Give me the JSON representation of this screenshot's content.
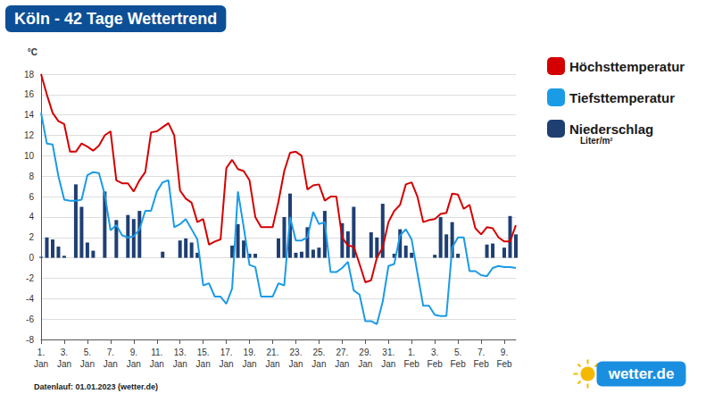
{
  "chart_data": {
    "type": "line",
    "title": "Köln - 42 Tage Wettertrend",
    "y_label": "°C",
    "unit_note": "Liter/m²",
    "footnote": "Datenlauf: 01.01.2023 (wetter.de)",
    "logo": "wetter.de",
    "categories": [
      "1. Jan",
      null,
      null,
      null,
      "3. Jan",
      null,
      null,
      null,
      "5. Jan",
      null,
      null,
      null,
      "7. Jan",
      null,
      null,
      null,
      "9. Jan",
      null,
      null,
      null,
      "11. Jan",
      null,
      null,
      null,
      "13. Jan",
      null,
      null,
      null,
      "15. Jan",
      null,
      null,
      null,
      "17. Jan",
      null,
      null,
      null,
      "19. Jan",
      null,
      null,
      null,
      "21. Jan",
      null,
      null,
      null,
      "23. Jan",
      null,
      null,
      null,
      "25. Jan",
      null,
      null,
      null,
      "27. Jan",
      null,
      null,
      null,
      "29. Jan",
      null,
      null,
      null,
      "31. Jan",
      null,
      null,
      null,
      "1. Feb",
      null,
      null,
      null,
      "3. Feb",
      null,
      null,
      null,
      "5. Feb",
      null,
      null,
      null,
      "7. Feb",
      null,
      null,
      null,
      "9. Feb",
      null,
      null
    ],
    "series": [
      {
        "name": "Höchsttemperatur",
        "type": "line",
        "color": "#d40000",
        "values": [
          18.0,
          16.0,
          14.2,
          13.4,
          13.1,
          10.4,
          10.4,
          11.2,
          10.9,
          10.5,
          11.0,
          12.0,
          12.4,
          7.6,
          7.3,
          7.3,
          6.5,
          7.6,
          8.4,
          12.3,
          12.4,
          12.8,
          13.2,
          12.0,
          6.6,
          5.8,
          5.4,
          3.5,
          3.8,
          1.3,
          1.6,
          1.8,
          8.8,
          9.6,
          8.7,
          8.5,
          7.6,
          4.0,
          3.0,
          3.0,
          3.0,
          5.5,
          8.5,
          10.3,
          10.4,
          10.0,
          6.7,
          7.1,
          7.2,
          5.6,
          6.0,
          6.0,
          2.0,
          1.2,
          1.1,
          -0.6,
          -2.4,
          -2.2,
          0.0,
          1.0,
          3.5,
          4.6,
          5.2,
          7.2,
          7.4,
          6.0,
          3.5,
          3.7,
          3.8,
          4.3,
          4.4,
          6.3,
          6.2,
          4.8,
          5.2,
          2.9,
          2.3,
          3.0,
          2.9,
          2.0,
          1.6,
          1.6,
          3.2
        ]
      },
      {
        "name": "Tiefsttemperatur",
        "type": "line",
        "color": "#1a9be6",
        "values": [
          14.2,
          11.2,
          11.1,
          8.0,
          5.7,
          5.6,
          5.6,
          5.7,
          8.1,
          8.4,
          8.3,
          6.2,
          2.7,
          3.2,
          2.2,
          2.0,
          2.1,
          2.8,
          4.6,
          4.6,
          6.5,
          7.4,
          7.6,
          3.0,
          3.3,
          3.8,
          2.8,
          1.8,
          -2.7,
          -2.5,
          -3.8,
          -3.8,
          -4.5,
          -3.0,
          6.5,
          3.0,
          -0.7,
          -0.9,
          -3.8,
          -3.8,
          -3.8,
          -2.5,
          -2.7,
          4.0,
          1.7,
          1.7,
          2.0,
          4.5,
          3.3,
          3.5,
          -1.4,
          -1.4,
          -1.0,
          -0.4,
          -3.2,
          -3.6,
          -6.2,
          -6.2,
          -6.5,
          -4.3,
          -0.8,
          -0.6,
          2.2,
          2.8,
          1.8,
          -1.5,
          -4.7,
          -4.7,
          -5.6,
          -5.7,
          -5.7,
          1.0,
          2.0,
          2.0,
          -1.3,
          -1.3,
          -1.7,
          -1.8,
          -1.0,
          -0.8,
          -0.9,
          -0.9,
          -1.0
        ]
      },
      {
        "name": "Niederschlag",
        "type": "bar",
        "color": "#1f3f73",
        "values": [
          0.1,
          2.0,
          1.8,
          1.1,
          0.2,
          0,
          7.2,
          5.0,
          1.5,
          0.7,
          0,
          6.5,
          0,
          3.7,
          0,
          4.2,
          3.8,
          4.6,
          0,
          0,
          0,
          0.6,
          0,
          0,
          1.7,
          1.9,
          1.5,
          0.5,
          0,
          0,
          0,
          0,
          0,
          1.2,
          3.3,
          1.7,
          0.4,
          0.4,
          0,
          0,
          0,
          1.9,
          4.0,
          6.3,
          0.5,
          0.6,
          3.0,
          0.8,
          1.0,
          4.6,
          0,
          0,
          3.4,
          2.6,
          5.0,
          0,
          0,
          2.5,
          2.0,
          5.3,
          0,
          0.4,
          2.8,
          1.2,
          0.5,
          0,
          0,
          0,
          0.3,
          4.0,
          2.3,
          3.5,
          0.4,
          0,
          0,
          0,
          0,
          1.3,
          1.4,
          0,
          1.0,
          4.1,
          2.3
        ]
      }
    ],
    "ylim": [
      -8,
      18
    ],
    "yticks": [
      -8,
      -6,
      -4,
      -2,
      0,
      2,
      4,
      6,
      8,
      10,
      12,
      14,
      16,
      18
    ],
    "grid": true,
    "legend": "right"
  }
}
